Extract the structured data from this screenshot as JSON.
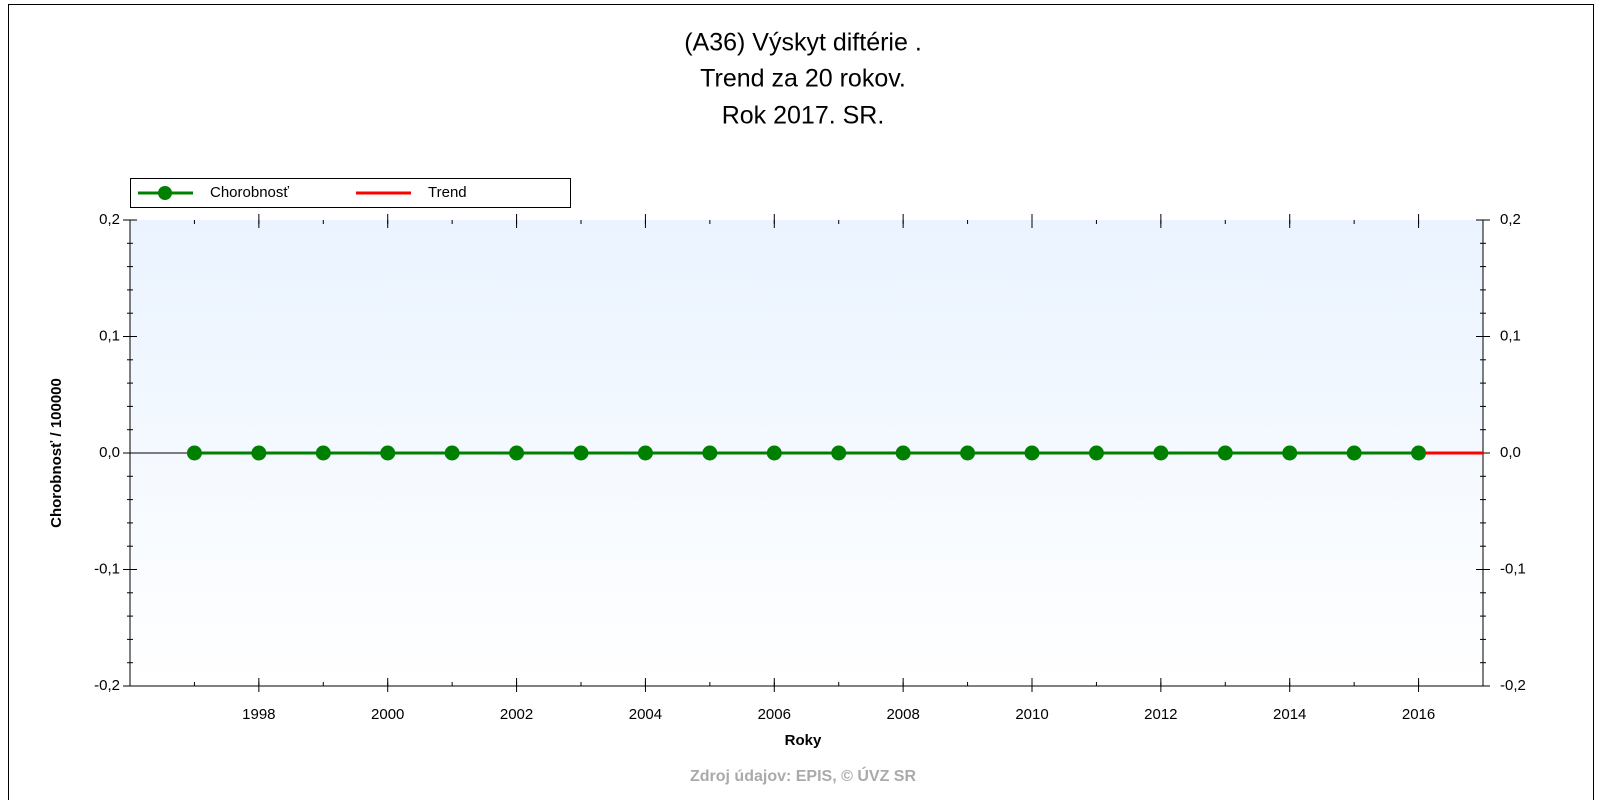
{
  "chart_data": {
    "type": "line",
    "title": [
      "(A36) Výskyt diftérie .",
      "Trend za 20 rokov.",
      "Rok 2017. SR."
    ],
    "x_label": "Roky",
    "y_label": "Chorobnosť / 100000",
    "source": "Zdroj údajov: EPIS, © ÚVZ SR",
    "series": [
      {
        "name": "Chorobnosť",
        "color": "#008000",
        "marker": true,
        "x": [
          1997,
          1998,
          1999,
          2000,
          2001,
          2002,
          2003,
          2004,
          2005,
          2006,
          2007,
          2008,
          2009,
          2010,
          2011,
          2012,
          2013,
          2014,
          2015,
          2016
        ],
        "values": [
          0,
          0,
          0,
          0,
          0,
          0,
          0,
          0,
          0,
          0,
          0,
          0,
          0,
          0,
          0,
          0,
          0,
          0,
          0,
          0
        ]
      },
      {
        "name": "Trend",
        "color": "#ff0000",
        "marker": false,
        "x": [
          1997,
          2017
        ],
        "values": [
          0,
          0
        ]
      }
    ],
    "xlim": [
      1996,
      2017
    ],
    "xticks": [
      1998,
      2000,
      2002,
      2004,
      2006,
      2008,
      2010,
      2012,
      2014,
      2016
    ],
    "ylim": [
      -0.2,
      0.2
    ],
    "yticks": [
      {
        "value": -0.2,
        "label": "-0,2"
      },
      {
        "value": -0.1,
        "label": "-0,1"
      },
      {
        "value": 0,
        "label": "0,0"
      },
      {
        "value": 0.1,
        "label": "0,1"
      },
      {
        "value": 0.2,
        "label": "0,2"
      }
    ],
    "y2lim": [
      -0.2,
      0.2
    ],
    "y2ticks": [
      {
        "value": -0.2,
        "label": "-0,2"
      },
      {
        "value": -0.1,
        "label": "-0,1"
      },
      {
        "value": 0,
        "label": "0,0"
      },
      {
        "value": 0.1,
        "label": "0,1"
      },
      {
        "value": 0.2,
        "label": "0,2"
      }
    ],
    "legend": "top-left"
  }
}
